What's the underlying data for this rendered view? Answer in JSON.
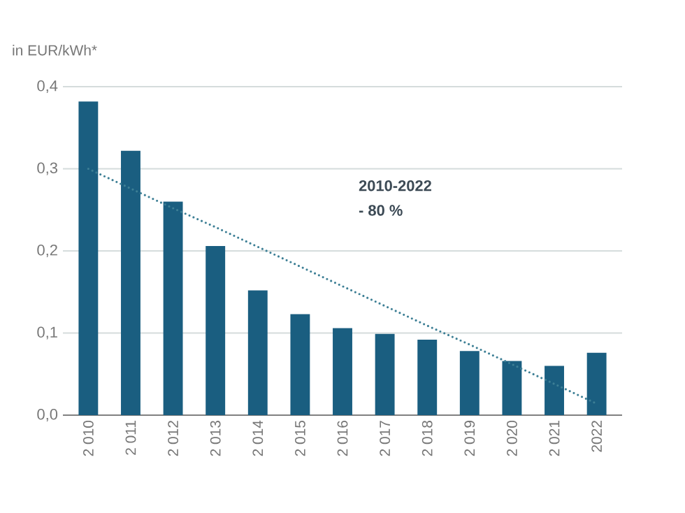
{
  "chart_data": {
    "type": "bar",
    "ylabel": "in EUR/kWh*",
    "categories": [
      "2 010",
      "2 011",
      "2 012",
      "2 013",
      "2 014",
      "2 015",
      "2 016",
      "2 017",
      "2 018",
      "2 019",
      "2 020",
      "2 021",
      "2022"
    ],
    "series": [
      {
        "color": "#1a5e80",
        "values": [
          0.382,
          0.322,
          0.26,
          0.206,
          0.152,
          0.123,
          0.106,
          0.099,
          0.092,
          0.078,
          0.066,
          0.06,
          0.076
        ]
      },
      {
        "type": "line",
        "color": "#3d7f95",
        "line_style": "dotted",
        "values": [
          0.3,
          0.276,
          0.252,
          0.229,
          0.205,
          0.181,
          0.157,
          0.133,
          0.109,
          0.086,
          0.062,
          0.038,
          0.014
        ]
      }
    ],
    "ylim": [
      0,
      0.4
    ],
    "yticks": [
      {
        "value": 0,
        "label": "0,0"
      },
      {
        "value": 0.1,
        "label": "0,1"
      },
      {
        "value": 0.2,
        "label": "0,2"
      },
      {
        "value": 0.3,
        "label": "0,3"
      },
      {
        "value": 0.4,
        "label": "0,4"
      }
    ],
    "grid": "y",
    "annotations": [
      "2010-2022",
      "- 80 %"
    ]
  }
}
